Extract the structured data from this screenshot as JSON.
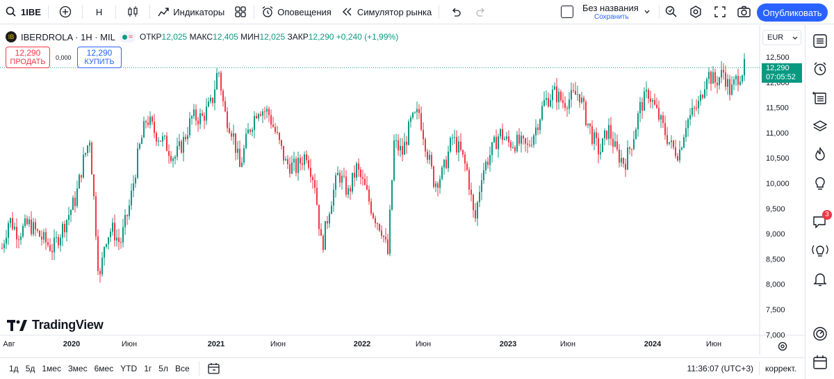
{
  "toolbar": {
    "symbol": "1IBE",
    "interval": "H",
    "indicators": "Индикаторы",
    "alerts": "Оповещения",
    "replay": "Симулятор рынка",
    "layout_name": "Без названия",
    "layout_status": "Сохранить",
    "publish": "Опубликовать"
  },
  "legend": {
    "logo": "IB",
    "title": "IBERDROLA · 1H · MIL",
    "open_label": "ОТКР",
    "open": "12,025",
    "high_label": "МАКС",
    "high": "12,405",
    "low_label": "МИН",
    "low": "12,025",
    "close_label": "ЗАКР",
    "close": "12,290",
    "change": "+0,240 (+1,99%)"
  },
  "trade": {
    "sell_price": "12,290",
    "sell_label": "ПРОДАТЬ",
    "spread": "0,000",
    "buy_price": "12,290",
    "buy_label": "КУПИТЬ"
  },
  "currency": "EUR",
  "last_price": {
    "value": "12,290",
    "countdown": "07:05:52"
  },
  "brand": "TradingView",
  "bottom": {
    "ranges": [
      "1д",
      "5д",
      "1мес",
      "3мес",
      "6мес",
      "YTD",
      "1г",
      "5л",
      "Все"
    ],
    "clock": "11:36:07 (UTC+3)",
    "adjust": "коррект."
  },
  "colors": {
    "up": "#089981",
    "down": "#f23645",
    "accent": "#2962ff"
  },
  "notifications_count": "3",
  "chart_data": {
    "type": "candlestick",
    "yaxis_ticks": [
      "12,500",
      "12,000",
      "11,500",
      "11,000",
      "10,500",
      "10,000",
      "9,500",
      "9,000",
      "8,500",
      "8,000",
      "7,500",
      "7,000"
    ],
    "ylim": [
      7.0,
      12.75
    ],
    "xaxis_ticks": [
      "Авг",
      "2020",
      "Июн",
      "2021",
      "Июн",
      "2022",
      "Июн",
      "2023",
      "Июн",
      "2024",
      "Июн"
    ],
    "last_price": 12.29,
    "path": [
      [
        0,
        8.6
      ],
      [
        12,
        9.3
      ],
      [
        25,
        9.0
      ],
      [
        40,
        9.2
      ],
      [
        60,
        8.9
      ],
      [
        75,
        8.7
      ],
      [
        92,
        9.2
      ],
      [
        108,
        9.7
      ],
      [
        118,
        10.4
      ],
      [
        128,
        10.9
      ],
      [
        136,
        9.3
      ],
      [
        142,
        8.0
      ],
      [
        150,
        8.9
      ],
      [
        160,
        9.1
      ],
      [
        172,
        8.8
      ],
      [
        186,
        9.6
      ],
      [
        198,
        10.6
      ],
      [
        210,
        11.3
      ],
      [
        222,
        11.0
      ],
      [
        236,
        10.8
      ],
      [
        250,
        10.5
      ],
      [
        262,
        10.8
      ],
      [
        275,
        11.3
      ],
      [
        290,
        11.3
      ],
      [
        304,
        11.6
      ],
      [
        313,
        12.3
      ],
      [
        322,
        11.4
      ],
      [
        334,
        11.0
      ],
      [
        344,
        10.3
      ],
      [
        356,
        11.0
      ],
      [
        370,
        11.5
      ],
      [
        385,
        11.4
      ],
      [
        398,
        10.9
      ],
      [
        410,
        10.4
      ],
      [
        425,
        10.3
      ],
      [
        440,
        10.6
      ],
      [
        452,
        10.0
      ],
      [
        462,
        8.7
      ],
      [
        474,
        9.6
      ],
      [
        486,
        10.2
      ],
      [
        500,
        9.8
      ],
      [
        512,
        10.3
      ],
      [
        524,
        9.9
      ],
      [
        536,
        9.4
      ],
      [
        548,
        9.1
      ],
      [
        557,
        8.6
      ],
      [
        566,
        10.8
      ],
      [
        578,
        10.6
      ],
      [
        590,
        11.2
      ],
      [
        602,
        11.4
      ],
      [
        614,
        10.6
      ],
      [
        624,
        10.0
      ],
      [
        636,
        10.2
      ],
      [
        650,
        10.9
      ],
      [
        662,
        10.6
      ],
      [
        672,
        10.2
      ],
      [
        682,
        9.2
      ],
      [
        692,
        10.2
      ],
      [
        705,
        10.6
      ],
      [
        718,
        11.0
      ],
      [
        730,
        10.8
      ],
      [
        745,
        10.8
      ],
      [
        758,
        10.7
      ],
      [
        770,
        11.1
      ],
      [
        782,
        11.6
      ],
      [
        796,
        11.8
      ],
      [
        810,
        11.6
      ],
      [
        822,
        11.7
      ],
      [
        832,
        11.8
      ],
      [
        842,
        11.3
      ],
      [
        852,
        10.9
      ],
      [
        862,
        10.6
      ],
      [
        874,
        11.1
      ],
      [
        886,
        10.6
      ],
      [
        898,
        10.4
      ],
      [
        910,
        10.9
      ],
      [
        920,
        11.5
      ],
      [
        932,
        11.8
      ],
      [
        944,
        11.4
      ],
      [
        956,
        11.0
      ],
      [
        966,
        10.7
      ],
      [
        976,
        10.6
      ],
      [
        986,
        11.2
      ],
      [
        996,
        11.4
      ],
      [
        1006,
        11.6
      ],
      [
        1016,
        12.2
      ],
      [
        1028,
        12.0
      ],
      [
        1040,
        12.2
      ],
      [
        1050,
        11.8
      ],
      [
        1060,
        12.1
      ],
      [
        1070,
        12.29
      ]
    ]
  }
}
